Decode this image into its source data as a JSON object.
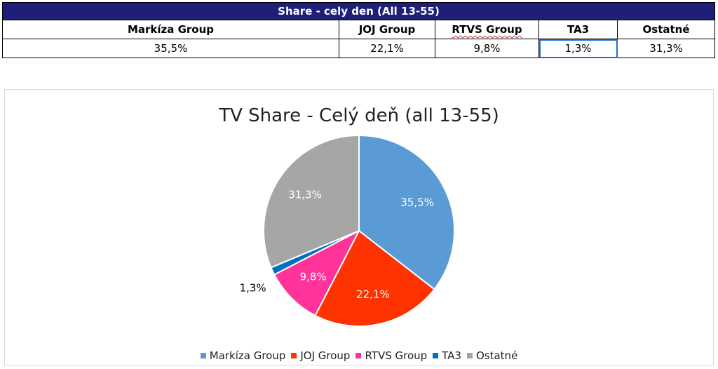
{
  "table": {
    "title": "Share - cely den (All 13-55)",
    "headers": [
      "Markíza Group",
      "JOJ Group",
      "RTVS Group",
      "TA3",
      "Ostatné"
    ],
    "values": [
      "35,5%",
      "22,1%",
      "9,8%",
      "1,3%",
      "31,3%"
    ]
  },
  "chart_data": {
    "type": "pie",
    "title": "TV Share - Celý deň (all 13-55)",
    "categories": [
      "Markíza Group",
      "JOJ Group",
      "RTVS Group",
      "TA3",
      "Ostatné"
    ],
    "values": [
      35.5,
      22.1,
      9.8,
      1.3,
      31.3
    ],
    "labels": [
      "35,5%",
      "22,1%",
      "9,8%",
      "1,3%",
      "31,3%"
    ],
    "colors": [
      "#5b9bd5",
      "#ff3300",
      "#ff3399",
      "#0070c0",
      "#a6a6a6"
    ],
    "legend": "bottom"
  }
}
